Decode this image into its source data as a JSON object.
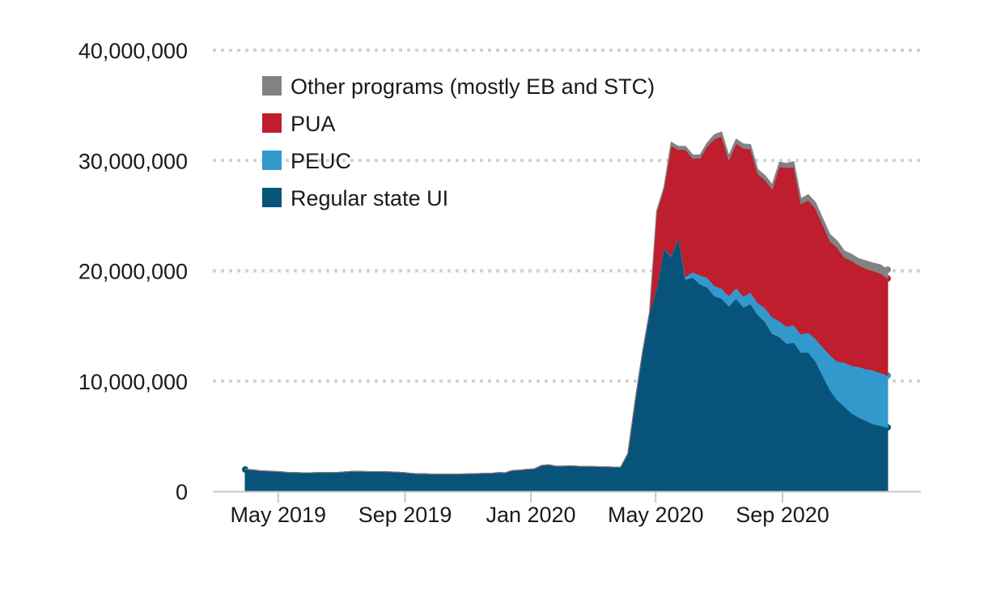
{
  "chart_data": {
    "type": "area",
    "stacked": true,
    "title": "",
    "xlabel": "",
    "ylabel": "",
    "ylim": [
      0,
      40000000
    ],
    "yticks": [
      0,
      10000000,
      20000000,
      30000000,
      40000000
    ],
    "ytick_labels": [
      "0",
      "10,000,000",
      "20,000,000",
      "30,000,000",
      "40,000,000"
    ],
    "xticks": [
      {
        "date": "2019-05-01",
        "label": "May 2019"
      },
      {
        "date": "2019-09-01",
        "label": "Sep 2019"
      },
      {
        "date": "2020-01-01",
        "label": "Jan 2020"
      },
      {
        "date": "2020-05-01",
        "label": "May 2020"
      },
      {
        "date": "2020-09-01",
        "label": "Sep 2020"
      }
    ],
    "grid": "horizontal dotted",
    "legend_position": "top-left",
    "x": [
      "2019-03-30",
      "2019-04-06",
      "2019-04-13",
      "2019-04-20",
      "2019-04-27",
      "2019-05-04",
      "2019-05-11",
      "2019-05-18",
      "2019-05-25",
      "2019-06-01",
      "2019-06-08",
      "2019-06-15",
      "2019-06-22",
      "2019-06-29",
      "2019-07-06",
      "2019-07-13",
      "2019-07-20",
      "2019-07-27",
      "2019-08-03",
      "2019-08-10",
      "2019-08-17",
      "2019-08-24",
      "2019-08-31",
      "2019-09-07",
      "2019-09-14",
      "2019-09-21",
      "2019-09-28",
      "2019-10-05",
      "2019-10-12",
      "2019-10-19",
      "2019-10-26",
      "2019-11-02",
      "2019-11-09",
      "2019-11-16",
      "2019-11-23",
      "2019-11-30",
      "2019-12-07",
      "2019-12-14",
      "2019-12-21",
      "2019-12-28",
      "2020-01-04",
      "2020-01-11",
      "2020-01-18",
      "2020-01-25",
      "2020-02-01",
      "2020-02-08",
      "2020-02-15",
      "2020-02-22",
      "2020-02-29",
      "2020-03-07",
      "2020-03-14",
      "2020-03-21",
      "2020-03-28",
      "2020-04-04",
      "2020-04-11",
      "2020-04-18",
      "2020-04-25",
      "2020-05-02",
      "2020-05-09",
      "2020-05-16",
      "2020-05-23",
      "2020-05-30",
      "2020-06-06",
      "2020-06-13",
      "2020-06-20",
      "2020-06-27",
      "2020-07-04",
      "2020-07-11",
      "2020-07-18",
      "2020-07-25",
      "2020-08-01",
      "2020-08-08",
      "2020-08-15",
      "2020-08-22",
      "2020-08-29",
      "2020-09-05",
      "2020-09-12",
      "2020-09-19",
      "2020-09-26",
      "2020-10-03",
      "2020-10-10",
      "2020-10-17",
      "2020-10-24",
      "2020-10-31",
      "2020-11-07",
      "2020-11-14",
      "2020-11-21",
      "2020-11-28",
      "2020-12-05",
      "2020-12-12"
    ],
    "series": [
      {
        "name": "Regular state UI",
        "color": "#08537a",
        "values": [
          1980000,
          1960000,
          1880000,
          1840000,
          1810000,
          1780000,
          1720000,
          1700000,
          1690000,
          1690000,
          1700000,
          1700000,
          1720000,
          1730000,
          1780000,
          1830000,
          1820000,
          1800000,
          1800000,
          1790000,
          1770000,
          1750000,
          1710000,
          1640000,
          1600000,
          1590000,
          1560000,
          1560000,
          1570000,
          1560000,
          1580000,
          1600000,
          1610000,
          1640000,
          1640000,
          1700000,
          1690000,
          1900000,
          1930000,
          2000000,
          2030000,
          2340000,
          2420000,
          2300000,
          2280000,
          2320000,
          2280000,
          2270000,
          2260000,
          2240000,
          2230000,
          2200000,
          2200000,
          3410000,
          8170000,
          12500000,
          16200000,
          18400000,
          22000000,
          21300000,
          23000000,
          19200000,
          19400000,
          18800000,
          18500000,
          17700000,
          17500000,
          16800000,
          17500000,
          16700000,
          17000000,
          16000000,
          15400000,
          14300000,
          14000000,
          13400000,
          13500000,
          12600000,
          12600000,
          11800000,
          10500000,
          9200000,
          8300000,
          7700000,
          7100000,
          6700000,
          6400000,
          6100000,
          5950000,
          5800000
        ]
      },
      {
        "name": "PEUC",
        "color": "#3399cc",
        "values": [
          0,
          0,
          0,
          0,
          0,
          0,
          0,
          0,
          0,
          0,
          0,
          0,
          0,
          0,
          0,
          0,
          0,
          0,
          0,
          0,
          0,
          0,
          0,
          0,
          0,
          0,
          0,
          0,
          0,
          0,
          0,
          0,
          0,
          0,
          0,
          0,
          0,
          0,
          0,
          0,
          0,
          0,
          0,
          0,
          0,
          0,
          0,
          0,
          0,
          0,
          0,
          0,
          0,
          0,
          0,
          0,
          0,
          50000,
          60000,
          70000,
          80000,
          280000,
          500000,
          800000,
          900000,
          950000,
          900000,
          950000,
          950000,
          1000000,
          1050000,
          1100000,
          1250000,
          1500000,
          1450000,
          1550000,
          1600000,
          1650000,
          1800000,
          2050000,
          2600000,
          3200000,
          3500000,
          4000000,
          4300000,
          4600000,
          4700000,
          4900000,
          4800000,
          4700000
        ]
      },
      {
        "name": "PUA",
        "color": "#be1e2d",
        "values": [
          0,
          0,
          0,
          0,
          0,
          0,
          0,
          0,
          0,
          0,
          0,
          0,
          0,
          0,
          0,
          0,
          0,
          0,
          0,
          0,
          0,
          0,
          0,
          0,
          0,
          0,
          0,
          0,
          0,
          0,
          0,
          0,
          0,
          0,
          0,
          0,
          0,
          0,
          0,
          0,
          0,
          0,
          0,
          0,
          0,
          0,
          0,
          0,
          0,
          0,
          0,
          0,
          0,
          0,
          0,
          0,
          0,
          6900000,
          5350000,
          10000000,
          7900000,
          11500000,
          10300000,
          10600000,
          11900000,
          13300000,
          13800000,
          12300000,
          13100000,
          13400000,
          13000000,
          11700000,
          11600000,
          11600000,
          14000000,
          14400000,
          14300000,
          11800000,
          12000000,
          11800000,
          11100000,
          10300000,
          10300000,
          9500000,
          9500000,
          9200000,
          9100000,
          9000000,
          9000000,
          8800000
        ]
      },
      {
        "name": "Other programs (mostly EB and STC)",
        "color": "#828282",
        "values": [
          0,
          0,
          0,
          0,
          0,
          0,
          0,
          0,
          0,
          0,
          0,
          0,
          0,
          0,
          0,
          0,
          0,
          0,
          0,
          0,
          0,
          0,
          0,
          0,
          0,
          0,
          0,
          0,
          0,
          0,
          0,
          0,
          0,
          0,
          0,
          0,
          0,
          0,
          0,
          0,
          0,
          0,
          0,
          0,
          0,
          0,
          0,
          0,
          0,
          0,
          0,
          0,
          0,
          0,
          0,
          0,
          0,
          100000,
          150000,
          300000,
          300000,
          300000,
          300000,
          300000,
          300000,
          400000,
          400000,
          400000,
          400000,
          400000,
          400000,
          400000,
          400000,
          400000,
          400000,
          400000,
          500000,
          500000,
          500000,
          550000,
          550000,
          600000,
          600000,
          600000,
          600000,
          600000,
          700000,
          700000,
          800000,
          800000
        ]
      }
    ],
    "legend": [
      "Other programs (mostly EB and STC)",
      "PUA",
      "PEUC",
      "Regular state UI"
    ]
  }
}
